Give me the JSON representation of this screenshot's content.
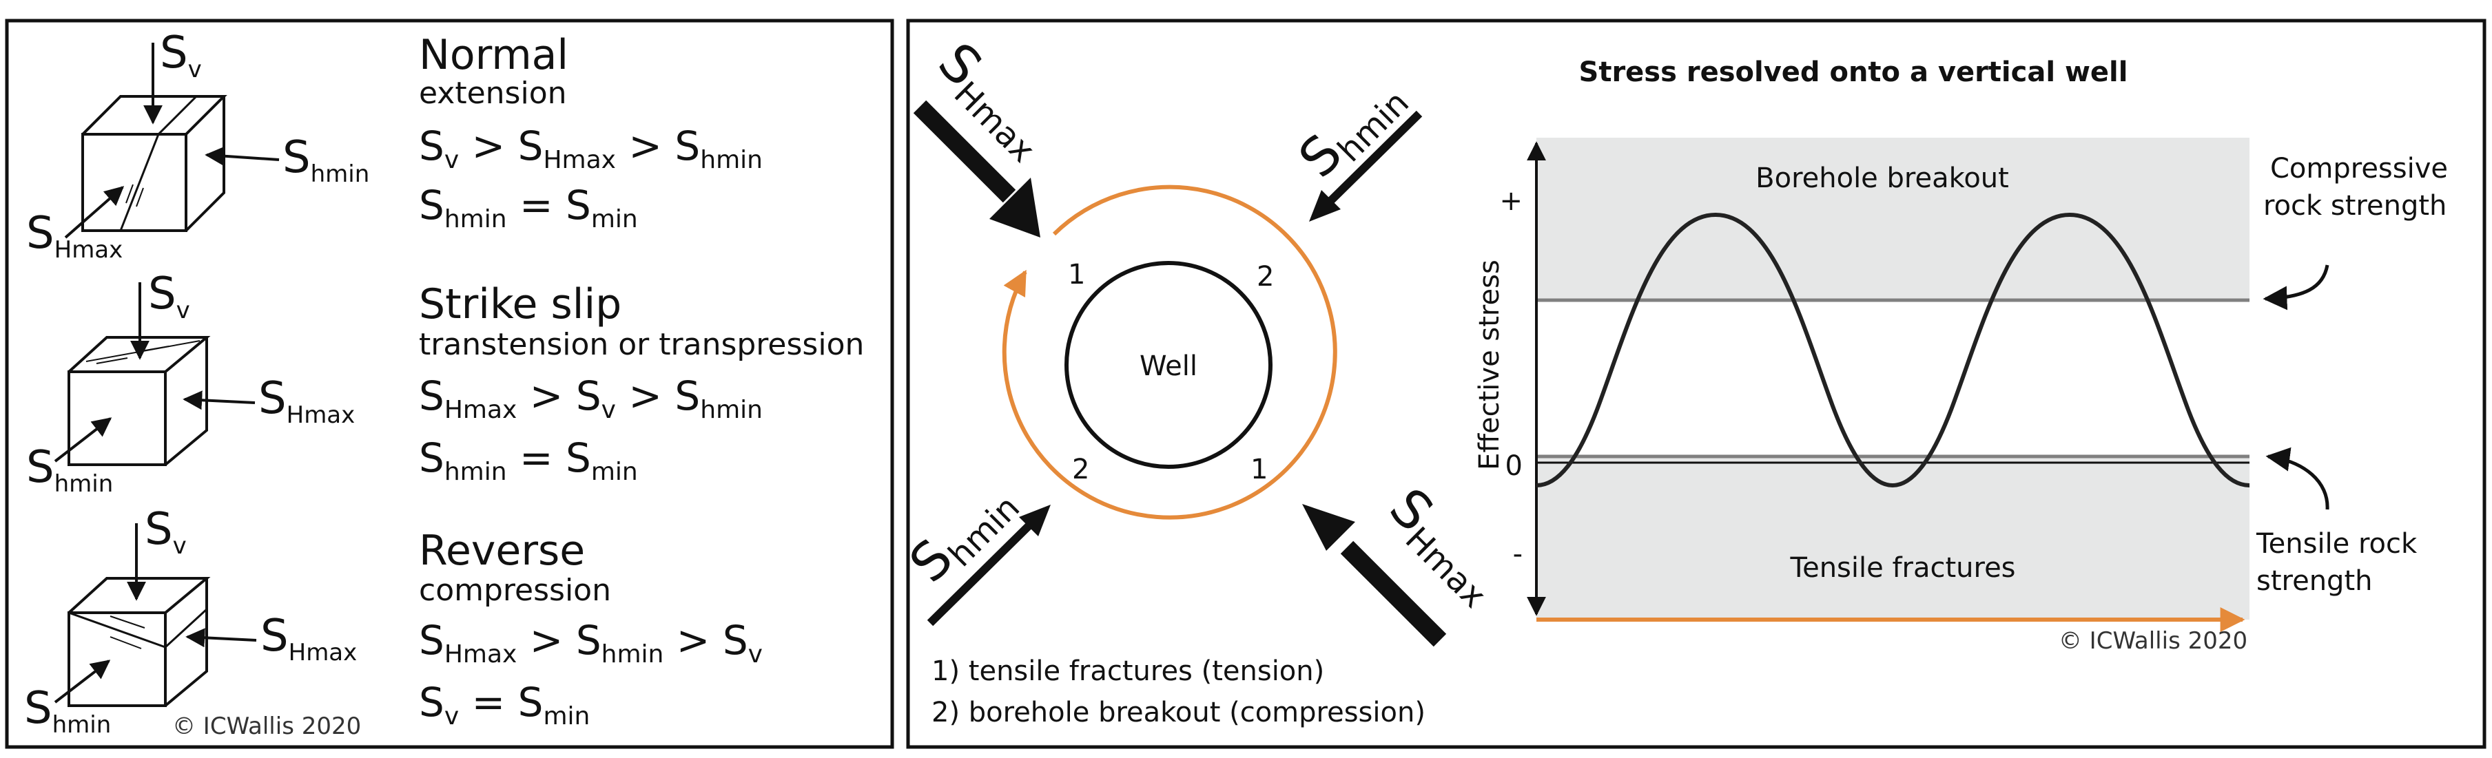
{
  "colors": {
    "orange": "#e58a3a",
    "shade": "#e6e7e7",
    "ink": "#111111",
    "rule": "#808080"
  },
  "left_panel": {
    "regimes": [
      {
        "name": "Normal",
        "desc": "extension",
        "eq1": {
          "a": "S",
          "a_sub": "v",
          "op1": " > S",
          "b_sub": "Hmax",
          "op2": " > S",
          "c_sub": "hmin"
        },
        "eq2": {
          "a": "S",
          "a_sub": "hmin",
          "op1": " = S",
          "b_sub": "min"
        },
        "block_labels": {
          "top": "S",
          "top_sub": "v",
          "side": "S",
          "side_sub": "hmin",
          "corner": "S",
          "corner_sub": "Hmax"
        }
      },
      {
        "name": "Strike slip",
        "desc": "transtension or transpression",
        "eq1": {
          "a": "S",
          "a_sub": "Hmax",
          "op1": " > S",
          "b_sub": "v",
          "op2": " > S",
          "c_sub": "hmin"
        },
        "eq2": {
          "a": "S",
          "a_sub": "hmin",
          "op1": " = S",
          "b_sub": "min"
        },
        "block_labels": {
          "top": "S",
          "top_sub": "v",
          "side": "S",
          "side_sub": "Hmax",
          "corner": "S",
          "corner_sub": "hmin"
        }
      },
      {
        "name": "Reverse",
        "desc": "compression",
        "eq1": {
          "a": "S",
          "a_sub": "Hmax",
          "op1": " > S",
          "b_sub": "hmin",
          "op2": " > S",
          "c_sub": "v"
        },
        "eq2": {
          "a": "S",
          "a_sub": "v",
          "op1": " = S",
          "b_sub": "min"
        },
        "block_labels": {
          "top": "S",
          "top_sub": "v",
          "side": "S",
          "side_sub": "Hmax",
          "corner": "S",
          "corner_sub": "hmin"
        }
      }
    ],
    "copyright": "© ICWallis 2020"
  },
  "right_panel": {
    "arrows": {
      "top_left": {
        "main": "S",
        "sub": "Hmax"
      },
      "top_right": {
        "main": "S",
        "sub": "hmin"
      },
      "bottom_left": {
        "main": "S",
        "sub": "hmin"
      },
      "bottom_right": {
        "main": "S",
        "sub": "Hmax"
      }
    },
    "well_label": "Well",
    "numbers": [
      "1",
      "2",
      "2",
      "1"
    ],
    "legend": [
      "1) tensile fractures (tension)",
      "2) borehole breakout (compression)"
    ],
    "plot": {
      "title": "Stress resolved onto a vertical well",
      "ylabel": "Effective stress",
      "ticks": [
        "+",
        "0",
        "-"
      ],
      "top_region": "Borehole breakout",
      "bottom_region": "Tensile fractures",
      "compressive_label": [
        "Compressive",
        "rock strength"
      ],
      "tensile_label": [
        "Tensile rock",
        "strength"
      ],
      "copyright": "© ICWallis 2020"
    }
  }
}
